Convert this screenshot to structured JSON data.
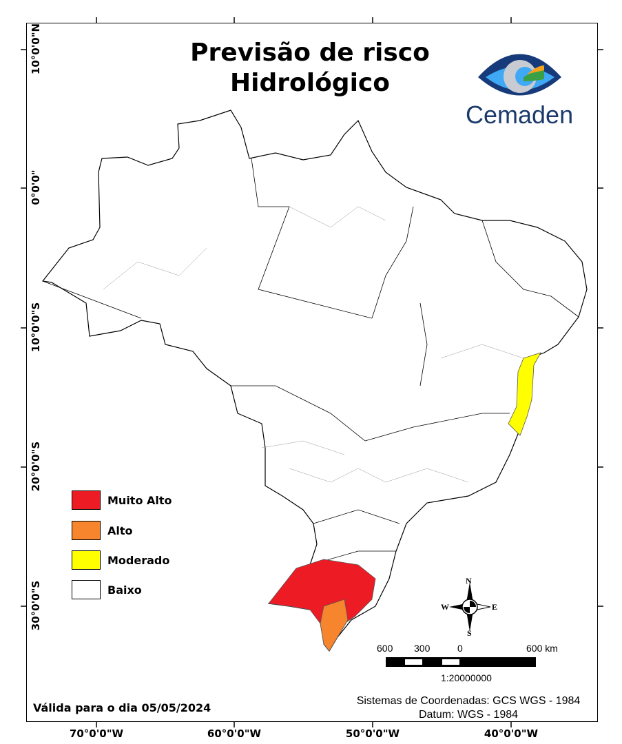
{
  "title_line1": "Previsão de risco",
  "title_line2": "Hidrológico",
  "logo": {
    "text": "Cemaden"
  },
  "y_axis_labels": [
    "10°0'0\"N",
    "0°0'0\"",
    "10°0'0\"S",
    "20°0'0\"S",
    "30°0'0\"S"
  ],
  "x_axis_labels": [
    "70°0'0\"W",
    "60°0'0\"W",
    "50°0'0\"W",
    "40°0'0\"W"
  ],
  "legend": [
    {
      "label": "Muito Alto",
      "color": "#ed1c24"
    },
    {
      "label": "Alto",
      "color": "#f7852d"
    },
    {
      "label": "Moderado",
      "color": "#ffff00"
    },
    {
      "label": "Baixo",
      "color": "#ffffff"
    }
  ],
  "compass": {
    "n": "N",
    "s": "S",
    "e": "E",
    "w": "W"
  },
  "scale": {
    "labels": [
      "600",
      "300",
      "0",
      "600 km"
    ],
    "ratio": "1:20000000"
  },
  "validity": "Válida para o dia 05/05/2024",
  "coordinate_system": "Sistemas de Coordenadas: GCS WGS - 1984",
  "datum": "Datum: WGS - 1984"
}
